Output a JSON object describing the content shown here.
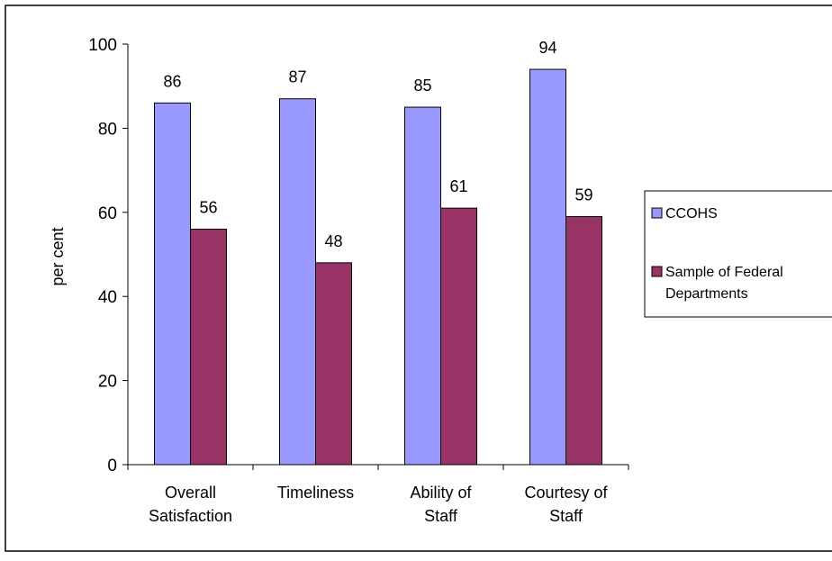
{
  "chart_data": {
    "type": "bar",
    "title": "",
    "xlabel": "",
    "ylabel": "per cent",
    "ylim": [
      0,
      100
    ],
    "yticks": [
      "0",
      "20",
      "40",
      "60",
      "80",
      "100"
    ],
    "categories": [
      [
        "Overall",
        "Satisfaction"
      ],
      [
        "Timeliness"
      ],
      [
        "Ability of",
        "Staff"
      ],
      [
        "Courtesy of",
        "Staff"
      ]
    ],
    "series": [
      {
        "name": "CCOHS",
        "values": [
          86,
          87,
          85,
          94
        ],
        "labels": [
          "86",
          "87",
          "85",
          "94"
        ],
        "color": "#9999ff"
      },
      {
        "name_lines": [
          "Sample of Federal",
          "Departments"
        ],
        "values": [
          56,
          48,
          61,
          59
        ],
        "labels": [
          "56",
          "48",
          "61",
          "59"
        ],
        "color": "#993366"
      }
    ],
    "legend_position": "right",
    "grid": false
  }
}
